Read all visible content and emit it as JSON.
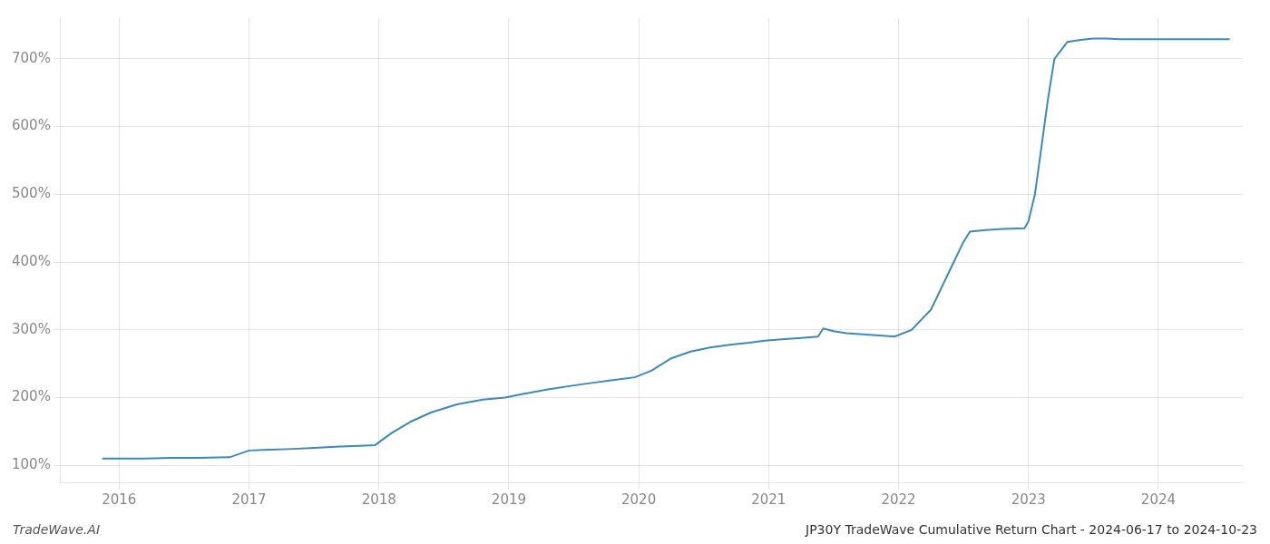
{
  "chart_data": {
    "type": "line",
    "title": "JP30Y TradeWave Cumulative Return Chart - 2024-06-17 to 2024-10-23",
    "annotations": [
      "TradeWave.AI"
    ],
    "color": "#3a8abf",
    "grid": true,
    "xlim": [
      2015.55,
      2024.65
    ],
    "xticks": [
      2016,
      2017,
      2018,
      2019,
      2020,
      2021,
      2022,
      2023,
      2024
    ],
    "ylim": [
      75,
      760
    ],
    "yticks": [
      {
        "value": 100,
        "label": "100%"
      },
      {
        "value": 200,
        "label": "200%"
      },
      {
        "value": 300,
        "label": "300%"
      },
      {
        "value": 400,
        "label": "400%"
      },
      {
        "value": 500,
        "label": "500%"
      },
      {
        "value": 600,
        "label": "600%"
      },
      {
        "value": 700,
        "label": "700%"
      }
    ],
    "x": [
      2015.87,
      2015.97,
      2016.2,
      2016.4,
      2016.6,
      2016.85,
      2017.0,
      2017.15,
      2017.3,
      2017.5,
      2017.7,
      2017.85,
      2017.97,
      2018.1,
      2018.25,
      2018.4,
      2018.6,
      2018.8,
      2018.97,
      2019.1,
      2019.3,
      2019.5,
      2019.65,
      2019.8,
      2019.97,
      2020.1,
      2020.25,
      2020.4,
      2020.55,
      2020.7,
      2020.85,
      2020.97,
      2021.1,
      2021.25,
      2021.38,
      2021.42,
      2021.5,
      2021.6,
      2021.75,
      2021.9,
      2021.97,
      2022.1,
      2022.25,
      2022.4,
      2022.5,
      2022.55,
      2022.65,
      2022.8,
      2022.97,
      2023.0,
      2023.05,
      2023.1,
      2023.15,
      2023.2,
      2023.3,
      2023.4,
      2023.5,
      2023.6,
      2023.7,
      2023.8,
      2023.9,
      2023.97,
      2024.0,
      2024.1,
      2024.2,
      2024.3,
      2024.4,
      2024.55
    ],
    "values": [
      110,
      110,
      110,
      111,
      111,
      112,
      122,
      123,
      124,
      126,
      128,
      129,
      130,
      148,
      165,
      178,
      190,
      197,
      200,
      205,
      212,
      218,
      222,
      226,
      230,
      240,
      258,
      268,
      274,
      278,
      281,
      284,
      286,
      288,
      290,
      302,
      298,
      295,
      293,
      291,
      290,
      300,
      330,
      390,
      430,
      445,
      447,
      449,
      450,
      460,
      500,
      570,
      640,
      700,
      725,
      728,
      730,
      730,
      729,
      729,
      729,
      729,
      729,
      729,
      729,
      729,
      729,
      729
    ]
  }
}
